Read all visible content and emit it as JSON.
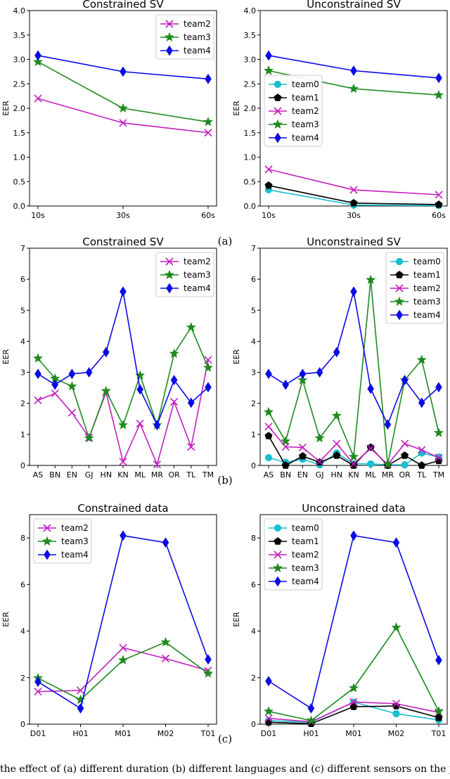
{
  "caption": "the effect of (a) different duration (b) different languages and (c) different sensors on the performance of",
  "colors": {
    "team0": "#17becf",
    "team1": "#000000",
    "team2": "#c21fbf",
    "team3": "#1f8a1f",
    "team4": "#0a0ae6"
  },
  "rows": [
    {
      "label": "(a)"
    },
    {
      "label": "(b)"
    },
    {
      "label": "(c)"
    }
  ],
  "chart_data": [
    {
      "type": "line",
      "title": "Constrained SV",
      "xlabel": "",
      "ylabel": "EER",
      "categories": [
        "10s",
        "30s",
        "60s"
      ],
      "ylim": [
        0,
        4
      ],
      "yticks": [
        "0.0",
        "0.5",
        "1.0",
        "1.5",
        "2.0",
        "2.5",
        "3.0",
        "3.5",
        "4.0"
      ],
      "legend": "top-right",
      "series": [
        {
          "name": "team2",
          "marker": "x",
          "values": [
            2.2,
            1.7,
            1.5
          ]
        },
        {
          "name": "team3",
          "marker": "star",
          "values": [
            2.95,
            2.0,
            1.72
          ]
        },
        {
          "name": "team4",
          "marker": "diamond",
          "values": [
            3.08,
            2.75,
            2.6
          ]
        }
      ]
    },
    {
      "type": "line",
      "title": "Unconstrained SV",
      "xlabel": "",
      "ylabel": "EER",
      "categories": [
        "10s",
        "30s",
        "60s"
      ],
      "ylim": [
        0,
        4
      ],
      "yticks": [
        "0.0",
        "0.5",
        "1.0",
        "1.5",
        "2.0",
        "2.5",
        "3.0",
        "3.5",
        "4.0"
      ],
      "legend": "center-left",
      "series": [
        {
          "name": "team0",
          "marker": "circle",
          "values": [
            0.33,
            0.02,
            0.01
          ]
        },
        {
          "name": "team1",
          "marker": "pentagon",
          "values": [
            0.42,
            0.06,
            0.03
          ]
        },
        {
          "name": "team2",
          "marker": "x",
          "values": [
            0.75,
            0.33,
            0.23
          ]
        },
        {
          "name": "team3",
          "marker": "star",
          "values": [
            2.77,
            2.4,
            2.27
          ]
        },
        {
          "name": "team4",
          "marker": "diamond",
          "values": [
            3.08,
            2.77,
            2.62
          ]
        }
      ]
    },
    {
      "type": "line",
      "title": "Constrained SV",
      "xlabel": "",
      "ylabel": "EER",
      "categories": [
        "AS",
        "BN",
        "EN",
        "GJ",
        "HN",
        "KN",
        "ML",
        "MR",
        "OR",
        "TL",
        "TM"
      ],
      "ylim": [
        0,
        7
      ],
      "yticks": [
        "0",
        "1",
        "2",
        "3",
        "4",
        "5",
        "6",
        "7"
      ],
      "legend": "top-right",
      "series": [
        {
          "name": "team2",
          "marker": "x",
          "values": [
            2.1,
            2.32,
            1.7,
            0.9,
            2.35,
            0.12,
            1.35,
            0.03,
            2.05,
            0.6,
            3.4
          ]
        },
        {
          "name": "team3",
          "marker": "star",
          "values": [
            3.45,
            2.8,
            2.55,
            0.88,
            2.4,
            1.3,
            2.9,
            1.3,
            3.6,
            4.45,
            3.15
          ]
        },
        {
          "name": "team4",
          "marker": "diamond",
          "values": [
            2.95,
            2.6,
            2.95,
            3.0,
            3.65,
            5.6,
            2.45,
            1.3,
            2.75,
            2.02,
            2.52
          ]
        }
      ]
    },
    {
      "type": "line",
      "title": "Unconstrained SV",
      "xlabel": "",
      "ylabel": "EER",
      "categories": [
        "AS",
        "BN",
        "EN",
        "GJ",
        "HN",
        "KN",
        "ML",
        "MR",
        "OR",
        "TL",
        "TM"
      ],
      "ylim": [
        0,
        7
      ],
      "yticks": [
        "0",
        "1",
        "2",
        "3",
        "4",
        "5",
        "6",
        "7"
      ],
      "legend": "top-right",
      "series": [
        {
          "name": "team0",
          "marker": "circle",
          "values": [
            0.25,
            0.1,
            0.2,
            0.02,
            0.4,
            0.05,
            0.05,
            0.02,
            0.02,
            0.4,
            0.27
          ]
        },
        {
          "name": "team1",
          "marker": "pentagon",
          "values": [
            0.95,
            0.0,
            0.3,
            0.1,
            0.32,
            0.0,
            0.58,
            0.0,
            0.32,
            0.0,
            0.15
          ]
        },
        {
          "name": "team2",
          "marker": "x",
          "values": [
            1.25,
            0.6,
            0.58,
            0.12,
            0.7,
            0.05,
            0.55,
            0.03,
            0.7,
            0.5,
            0.25
          ]
        },
        {
          "name": "team3",
          "marker": "star",
          "values": [
            1.72,
            0.78,
            2.75,
            0.88,
            1.6,
            0.28,
            5.98,
            0.03,
            2.75,
            3.4,
            1.05
          ]
        },
        {
          "name": "team4",
          "marker": "diamond",
          "values": [
            2.95,
            2.6,
            2.95,
            3.0,
            3.65,
            5.6,
            2.47,
            1.32,
            2.75,
            2.02,
            2.52
          ]
        }
      ]
    },
    {
      "type": "line",
      "title": "Constrained data",
      "xlabel": "",
      "ylabel": "EER",
      "categories": [
        "D01",
        "H01",
        "M01",
        "M02",
        "T01"
      ],
      "ylim": [
        0,
        9
      ],
      "yticks": [
        "0",
        "2",
        "4",
        "6",
        "8"
      ],
      "legend": "top-left",
      "series": [
        {
          "name": "team2",
          "marker": "x",
          "values": [
            1.4,
            1.45,
            3.28,
            2.82,
            2.3
          ]
        },
        {
          "name": "team3",
          "marker": "star",
          "values": [
            1.98,
            1.05,
            2.75,
            3.52,
            2.18
          ]
        },
        {
          "name": "team4",
          "marker": "diamond",
          "values": [
            1.82,
            0.68,
            8.1,
            7.8,
            2.78
          ]
        }
      ]
    },
    {
      "type": "line",
      "title": "Unconstrained data",
      "xlabel": "",
      "ylabel": "EER",
      "categories": [
        "D01",
        "H01",
        "M01",
        "M02",
        "T01"
      ],
      "ylim": [
        0,
        9
      ],
      "yticks": [
        "0",
        "2",
        "4",
        "6",
        "8"
      ],
      "legend": "top-left",
      "series": [
        {
          "name": "team0",
          "marker": "circle",
          "values": [
            0.15,
            0.08,
            0.95,
            0.45,
            0.18
          ]
        },
        {
          "name": "team1",
          "marker": "pentagon",
          "values": [
            0.08,
            0.02,
            0.75,
            0.78,
            0.28
          ]
        },
        {
          "name": "team2",
          "marker": "x",
          "values": [
            0.25,
            0.1,
            0.95,
            0.88,
            0.5
          ]
        },
        {
          "name": "team3",
          "marker": "star",
          "values": [
            0.55,
            0.15,
            1.55,
            4.15,
            0.55
          ]
        },
        {
          "name": "team4",
          "marker": "diamond",
          "values": [
            1.85,
            0.68,
            8.1,
            7.8,
            2.75
          ]
        }
      ]
    }
  ]
}
